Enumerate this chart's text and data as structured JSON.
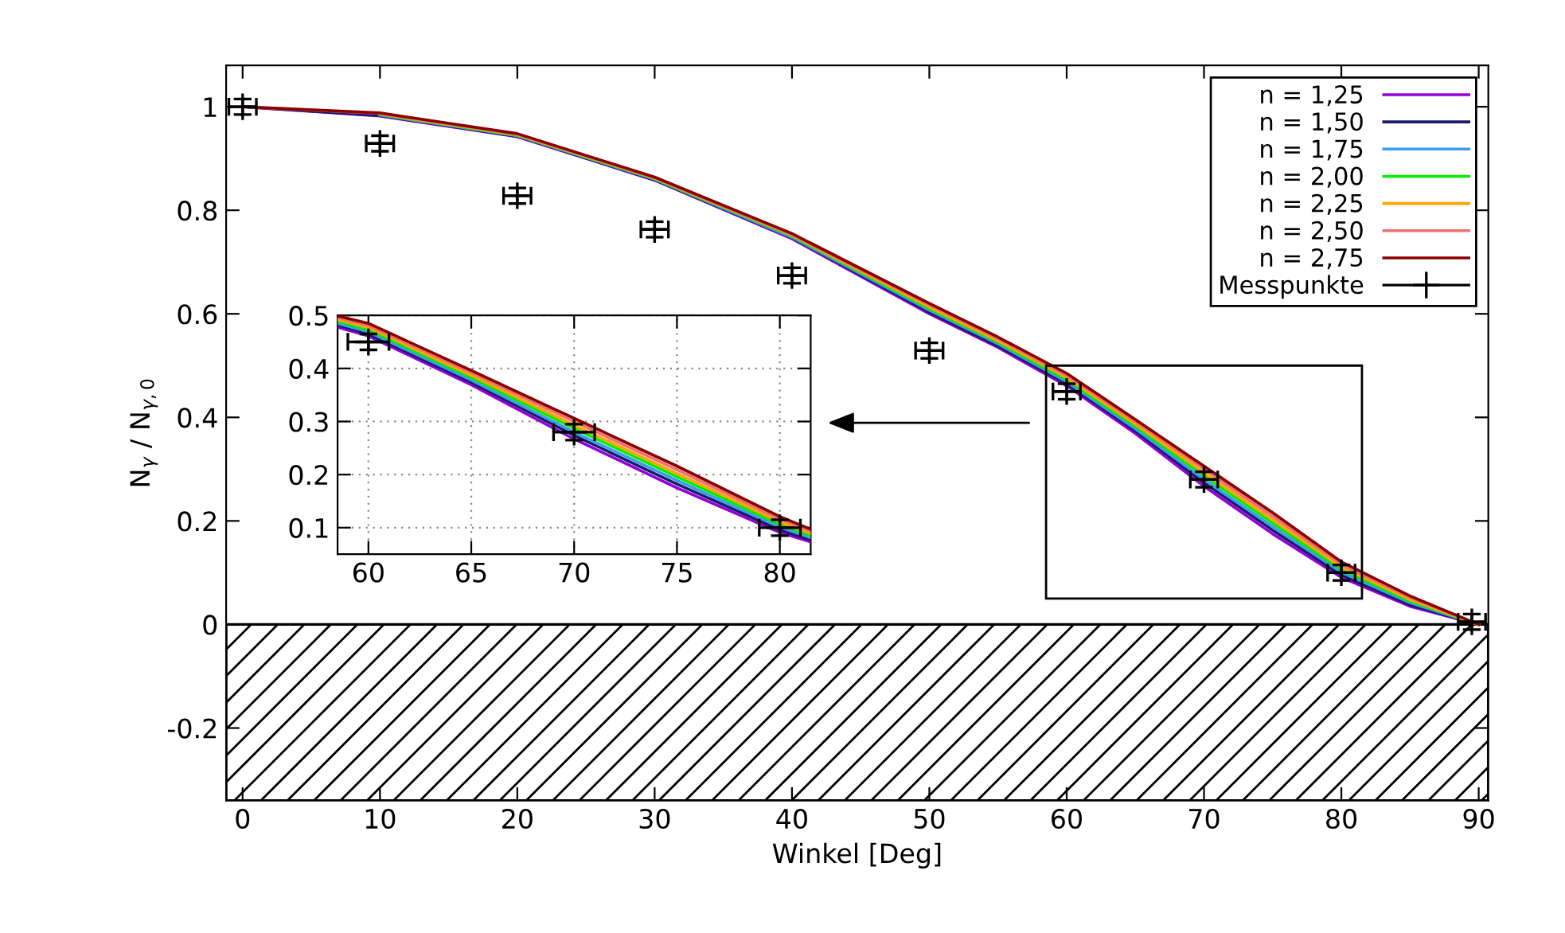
{
  "chart_data": [
    {
      "type": "line",
      "xlabel": "Winkel [Deg]",
      "ylabel": "N$_{γ}$ / N$_{γ,0}$",
      "xlim": [
        -1.2,
        90.7
      ],
      "ylim": [
        -0.34,
        1.08
      ],
      "xticks": [
        0,
        10,
        20,
        30,
        40,
        50,
        60,
        70,
        80,
        90
      ],
      "yticks": [
        {
          "value": -0.2,
          "label": "-0.2"
        },
        0,
        0.2,
        0.4,
        0.6,
        0.8,
        1
      ],
      "grid": false,
      "legend": "top right",
      "bands": [
        {
          "axis": "y",
          "from": -0.34,
          "to": 0
        }
      ],
      "x": [
        0,
        10,
        20,
        30,
        40,
        50,
        55,
        60,
        65,
        70,
        75,
        80,
        85,
        90
      ],
      "series": [
        {
          "name": "n = 1,25",
          "color": "#9400d3",
          "values": [
            1,
            0.982,
            0.942,
            0.858,
            0.745,
            0.6,
            0.535,
            0.461,
            0.369,
            0.267,
            0.175,
            0.091,
            0.035,
            0
          ]
        },
        {
          "name": "n = 1,50",
          "color": "#191970",
          "values": [
            1,
            0.983,
            0.943,
            0.859,
            0.747,
            0.603,
            0.538,
            0.465,
            0.374,
            0.274,
            0.182,
            0.096,
            0.038,
            0
          ]
        },
        {
          "name": "n = 1,75",
          "color": "#3b9cf0",
          "values": [
            null,
            0.984,
            0.944,
            0.86,
            0.748,
            0.607,
            0.542,
            0.469,
            0.378,
            0.28,
            0.189,
            0.101,
            0.042,
            0
          ]
        },
        {
          "name": "n = 2,00",
          "color": "#00ee00",
          "values": [
            null,
            0.985,
            0.945,
            0.861,
            0.75,
            0.61,
            0.545,
            0.473,
            0.383,
            0.287,
            0.196,
            0.106,
            0.045,
            0
          ]
        },
        {
          "name": "n = 2,25",
          "color": "#ffa500",
          "values": [
            null,
            0.986,
            0.946,
            0.862,
            0.752,
            0.613,
            0.548,
            0.477,
            0.387,
            0.293,
            0.202,
            0.111,
            0.048,
            0
          ]
        },
        {
          "name": "n = 2,50",
          "color": "#f07070",
          "values": [
            1,
            0.987,
            0.947,
            0.863,
            0.753,
            0.617,
            0.552,
            0.481,
            0.392,
            0.3,
            0.209,
            0.116,
            0.052,
            0
          ]
        },
        {
          "name": "n = 2,75",
          "color": "#8b0000",
          "values": [
            1,
            0.988,
            0.948,
            0.864,
            0.755,
            0.62,
            0.555,
            0.485,
            0.396,
            0.306,
            0.216,
            0.121,
            0.055,
            0
          ]
        },
        {
          "name": "Messpunkte",
          "type": "scatter",
          "marker": "cross",
          "color": "#000000",
          "x": [
            0,
            10,
            20,
            30,
            40,
            50,
            60,
            70,
            80,
            89.5
          ],
          "values": [
            1.0,
            0.929,
            0.828,
            0.763,
            0.674,
            0.529,
            0.45,
            0.28,
            0.1,
            0.005
          ],
          "errors": [
            0.015,
            0.015,
            0.015,
            0.015,
            0.015,
            0.015,
            0.015,
            0.015,
            0.015,
            0.015
          ],
          "xerrors": [
            1,
            1,
            1,
            1,
            1,
            1,
            1,
            1,
            1,
            1
          ]
        }
      ]
    },
    {
      "type": "line",
      "xlim": [
        58.5,
        81.5
      ],
      "ylim": [
        0.05,
        0.5
      ],
      "xticks": [
        60,
        65,
        70,
        75,
        80
      ],
      "yticks": [
        0.1,
        0.2,
        0.3,
        0.4,
        0.5
      ],
      "grid": true,
      "legend": false,
      "x": [
        58.5,
        60,
        65,
        70,
        75,
        80,
        81.5
      ],
      "series": [
        {
          "color": "#9400d3",
          "values": [
            0.478,
            0.461,
            0.369,
            0.267,
            0.175,
            0.091,
            0.073
          ]
        },
        {
          "color": "#191970",
          "values": [
            0.482,
            0.465,
            0.374,
            0.274,
            0.182,
            0.096,
            0.077
          ]
        },
        {
          "color": "#3b9cf0",
          "values": [
            0.485,
            0.469,
            0.378,
            0.28,
            0.189,
            0.101,
            0.081
          ]
        },
        {
          "color": "#00ee00",
          "values": [
            0.489,
            0.473,
            0.383,
            0.287,
            0.196,
            0.106,
            0.085
          ]
        },
        {
          "color": "#ffa500",
          "values": [
            0.492,
            0.477,
            0.387,
            0.293,
            0.202,
            0.111,
            0.089
          ]
        },
        {
          "color": "#f07070",
          "values": [
            0.496,
            0.481,
            0.392,
            0.3,
            0.209,
            0.116,
            0.093
          ]
        },
        {
          "color": "#8b0000",
          "values": [
            0.499,
            0.485,
            0.396,
            0.306,
            0.216,
            0.121,
            0.097
          ]
        },
        {
          "type": "scatter",
          "marker": "cross",
          "color": "#000000",
          "x": [
            60,
            70,
            80
          ],
          "values": [
            0.45,
            0.28,
            0.1
          ],
          "errors": [
            0.015,
            0.015,
            0.015
          ],
          "xerrors": [
            1,
            1,
            1
          ]
        }
      ]
    }
  ]
}
